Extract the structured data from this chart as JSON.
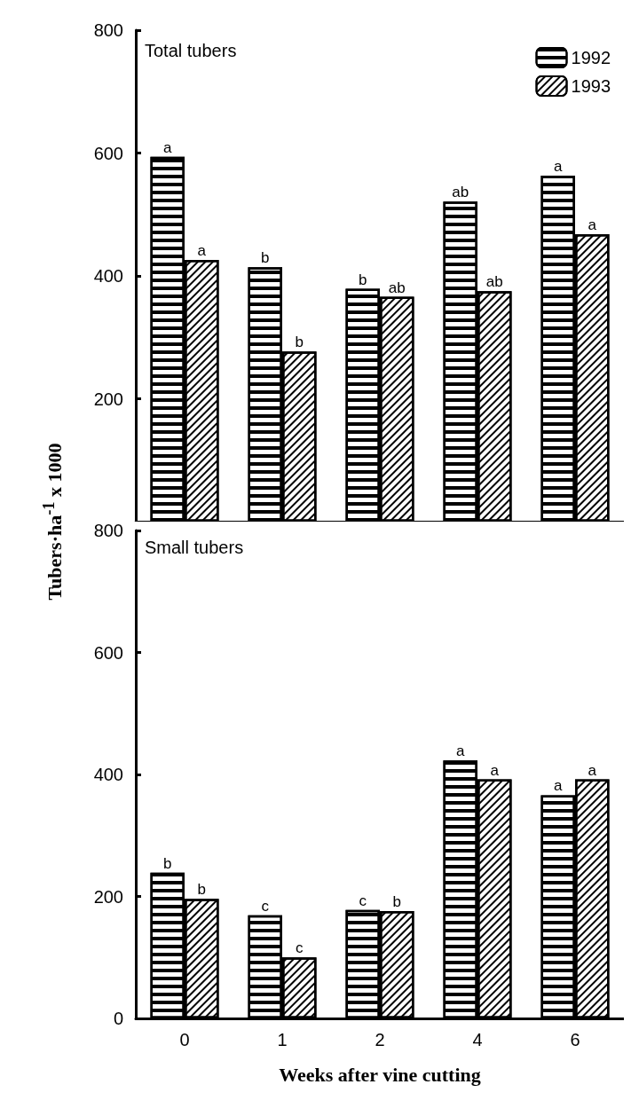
{
  "chart_data": [
    {
      "type": "bar",
      "title": "Total tubers",
      "ylabel": "Tubers·ha$^{-1}$ x 1000",
      "categories": [
        "0",
        "1",
        "2",
        "4",
        "6"
      ],
      "series": [
        {
          "name": "1992",
          "color": "#000000",
          "values": [
            594,
            414,
            379,
            521,
            563
          ],
          "value_labels": [
            "a",
            "b",
            "b",
            "ab",
            "a"
          ]
        },
        {
          "name": "1993",
          "color": "#000000",
          "values": [
            426,
            277,
            366,
            375,
            468
          ],
          "value_labels": [
            "a",
            "b",
            "ab",
            "ab",
            "a"
          ]
        }
      ],
      "ylim": [
        0,
        800
      ],
      "yticks": [
        200,
        400,
        600,
        800
      ],
      "tick_labels": "y",
      "legend": "top right",
      "grid": false
    },
    {
      "type": "bar",
      "title": "Small tubers",
      "xlabel": "Weeks after vine cutting",
      "categories": [
        "0",
        "1",
        "2",
        "4",
        "6"
      ],
      "series": [
        {
          "color": "#000000",
          "values": [
            239,
            169,
            178,
            423,
            366
          ],
          "value_labels": [
            "b",
            "c",
            "c",
            "a",
            "a"
          ]
        },
        {
          "color": "#000000",
          "values": [
            196,
            100,
            176,
            392,
            392
          ],
          "value_labels": [
            "b",
            "c",
            "b",
            "a",
            "a"
          ]
        }
      ],
      "ylim": [
        0,
        800
      ],
      "yticks": [
        0,
        200,
        400,
        600,
        800
      ],
      "grid": false
    }
  ]
}
